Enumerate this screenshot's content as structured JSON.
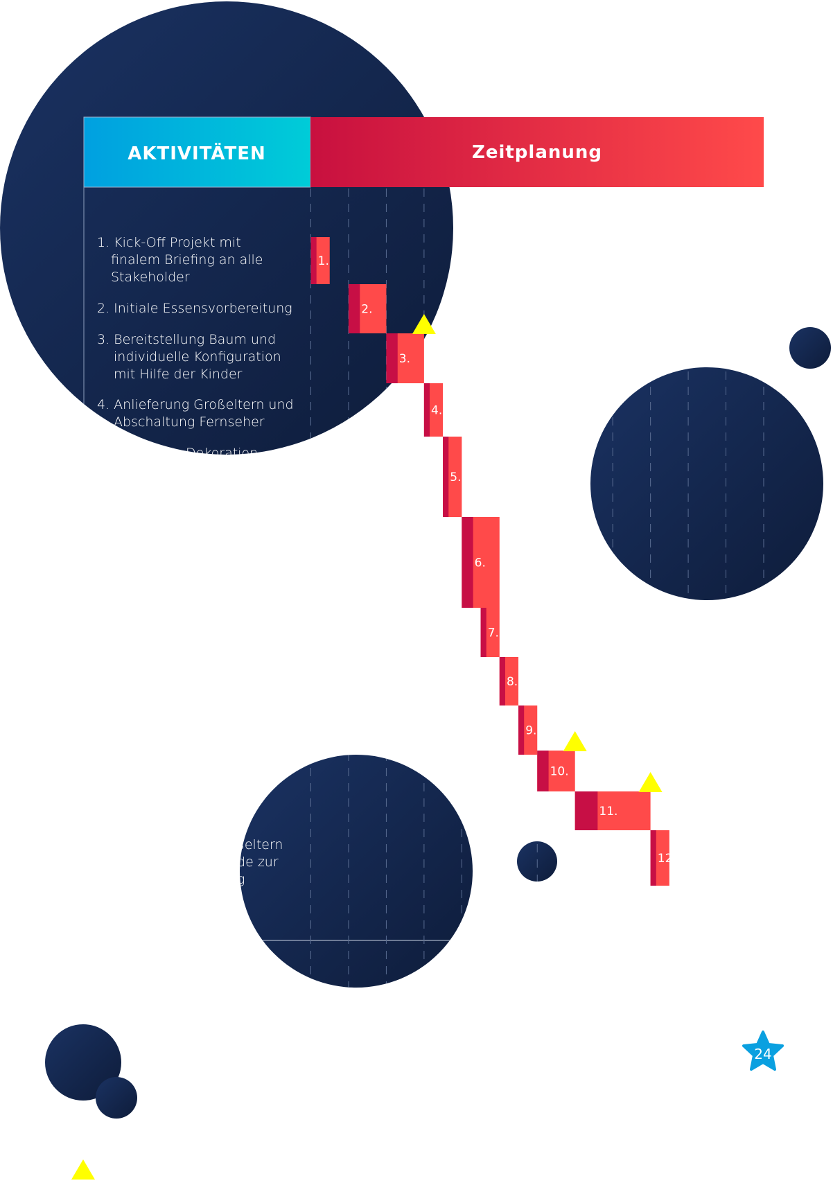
{
  "header": {
    "activities": "AKTIVITÄTEN",
    "schedule": "Zeitplanung"
  },
  "activities": [
    {
      "lines": [
        "1. Kick-Off Projekt mit",
        "finalem Briefing an alle",
        "Stakeholder"
      ]
    },
    {
      "lines": [
        "2. Initiale Essensvorbereitung"
      ]
    },
    {
      "lines": [
        "3. Bereitstellung Baum und",
        "individuelle Konfiguration",
        "mit Hilfe der Kinder"
      ]
    },
    {
      "lines": [
        "4. Anlieferung Großeltern und",
        "Abschaltung Fernseher"
      ]
    }
  ],
  "partial_texts": [
    "Dekoration",
    "ßeltern",
    "nde zur",
    "ng"
  ],
  "chart_data": {
    "type": "gantt",
    "columns": 12,
    "tasks": [
      {
        "label": "1.",
        "start": 0,
        "duration": 0.5,
        "milestone": false
      },
      {
        "label": "2.",
        "start": 1,
        "duration": 1,
        "milestone": false
      },
      {
        "label": "3.",
        "start": 2,
        "duration": 1,
        "milestone": true
      },
      {
        "label": "4.",
        "start": 3,
        "duration": 0.5,
        "milestone": false
      },
      {
        "label": "5.",
        "start": 3.5,
        "duration": 0.5,
        "milestone": false
      },
      {
        "label": "6.",
        "start": 4,
        "duration": 1,
        "milestone": false
      },
      {
        "label": "7.",
        "start": 4.5,
        "duration": 0.5,
        "milestone": false
      },
      {
        "label": "8.",
        "start": 5,
        "duration": 0.5,
        "milestone": false
      },
      {
        "label": "9.",
        "start": 5.5,
        "duration": 0.5,
        "milestone": false
      },
      {
        "label": "10.",
        "start": 6,
        "duration": 1,
        "milestone": true
      },
      {
        "label": "11.",
        "start": 7,
        "duration": 2,
        "milestone": true
      },
      {
        "label": "12.",
        "start": 9,
        "duration": 0.5,
        "milestone": false
      }
    ]
  },
  "page_number": "24",
  "colors": {
    "navy_light": "#1a3262",
    "navy_dark": "#0e1c3a",
    "cyan_start": "#00a0e0",
    "cyan_end": "#00ccd8",
    "red_start": "#c8103f",
    "red_end": "#ff4a4a",
    "bar_dark": "#c70f45",
    "bar_light": "#ff4a4a",
    "milestone": "#ffff00",
    "star": "#0aa0e0"
  }
}
